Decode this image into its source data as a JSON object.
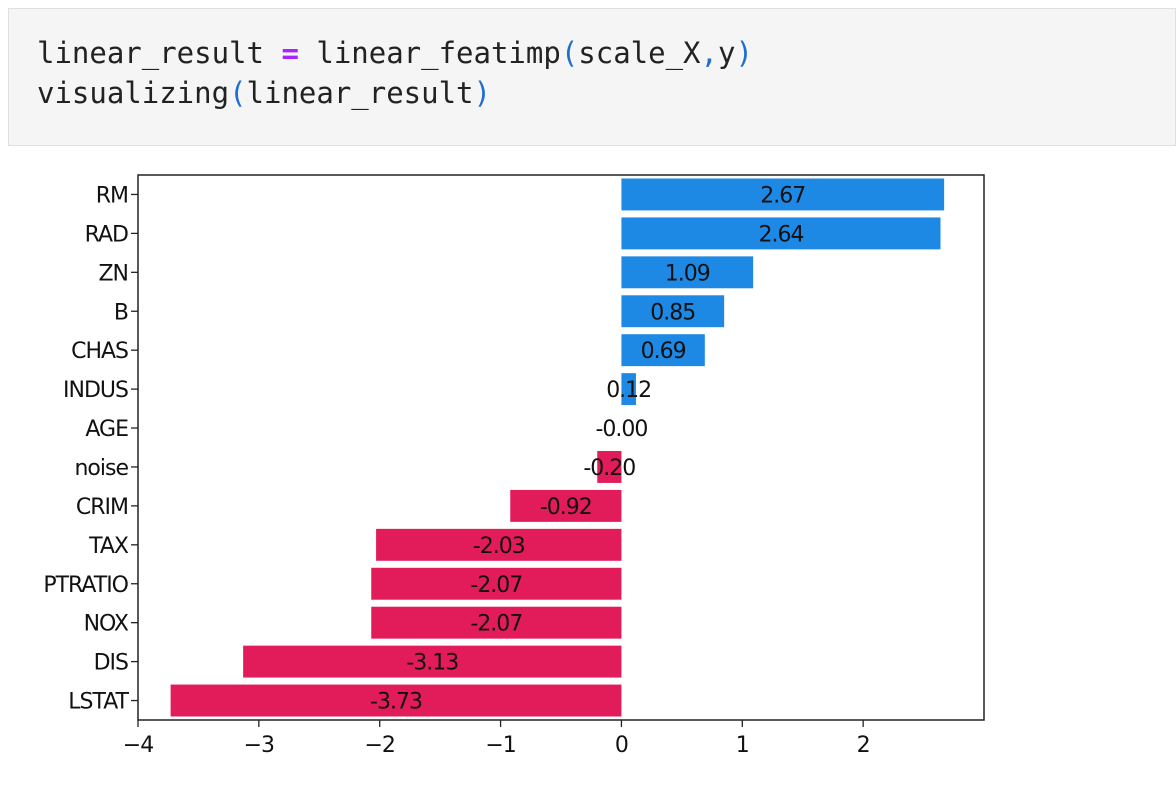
{
  "code_cell": {
    "line1": {
      "lhs": "linear_result",
      "op": " = ",
      "func": "linear_featimp",
      "open": "(",
      "args": "scale_X",
      "comma": ",",
      "arg2": "y",
      "close": ")"
    },
    "line2": {
      "func": "visualizing",
      "open": "(",
      "args": "linear_result",
      "close": ")"
    }
  },
  "colors": {
    "positive": "#1e88e5",
    "negative": "#e21b5a"
  },
  "chart_data": {
    "type": "bar",
    "orientation": "horizontal",
    "categories": [
      "RM",
      "RAD",
      "ZN",
      "B",
      "CHAS",
      "INDUS",
      "AGE",
      "noise",
      "CRIM",
      "TAX",
      "PTRATIO",
      "NOX",
      "DIS",
      "LSTAT"
    ],
    "values": [
      2.67,
      2.64,
      1.09,
      0.85,
      0.69,
      0.12,
      -0.0,
      -0.2,
      -0.92,
      -2.03,
      -2.07,
      -2.07,
      -3.13,
      -3.73
    ],
    "value_labels": [
      "2.67",
      "2.64",
      "1.09",
      "0.85",
      "0.69",
      "0.12",
      "-0.00",
      "-0.20",
      "-0.92",
      "-2.03",
      "-2.07",
      "-2.07",
      "-3.13",
      "-3.73"
    ],
    "xticks": [
      -4,
      -3,
      -2,
      -1,
      0,
      1,
      2
    ],
    "xtick_labels": [
      "−4",
      "−3",
      "−2",
      "−1",
      "0",
      "1",
      "2"
    ],
    "xlim": [
      -4.0,
      3.0
    ],
    "grid": false,
    "title": "",
    "xlabel": "",
    "ylabel": ""
  }
}
